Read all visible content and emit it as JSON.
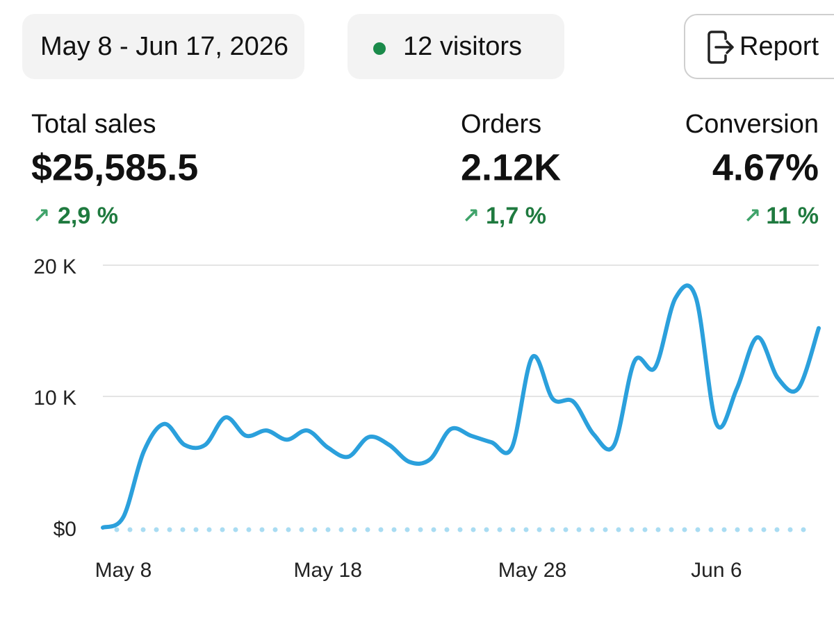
{
  "header": {
    "date_range": "May 8 - Jun 17, 2026",
    "visitors": "12 visitors",
    "report": "Report"
  },
  "metrics": [
    {
      "label": "Total sales",
      "value": "$25,585.5",
      "change": "2,9 %"
    },
    {
      "label": "Orders",
      "value": "2.12K",
      "change": "1,7 %"
    },
    {
      "label": "Conversion",
      "value": "4.67%",
      "change": "11 %"
    }
  ],
  "chart_data": {
    "type": "line",
    "categories": [
      null,
      "May 8",
      null,
      null,
      null,
      null,
      null,
      null,
      null,
      null,
      null,
      "May 18",
      null,
      null,
      null,
      null,
      null,
      null,
      null,
      null,
      null,
      "May 28",
      null,
      null,
      null,
      null,
      null,
      null,
      null,
      null,
      "Jun 6",
      null,
      null,
      null,
      null,
      null
    ],
    "series": [
      {
        "name": "Total sales",
        "color": "#2ba0dc",
        "values": [
          0,
          800,
          5800,
          7900,
          6300,
          6300,
          8400,
          7000,
          7400,
          6700,
          7400,
          6100,
          5400,
          6900,
          6300,
          5000,
          5200,
          7500,
          7000,
          6500,
          6100,
          13000,
          9800,
          9600,
          7100,
          6300,
          12700,
          12200,
          17500,
          17500,
          7900,
          10600,
          14500,
          11400,
          10600,
          15200
        ]
      }
    ],
    "ylim": [
      0,
      20000
    ],
    "yticks": [
      {
        "value": 0,
        "label": "$0"
      },
      {
        "value": 10000,
        "label": "10 K"
      },
      {
        "value": 20000,
        "label": "20 K"
      }
    ],
    "grid": true
  }
}
